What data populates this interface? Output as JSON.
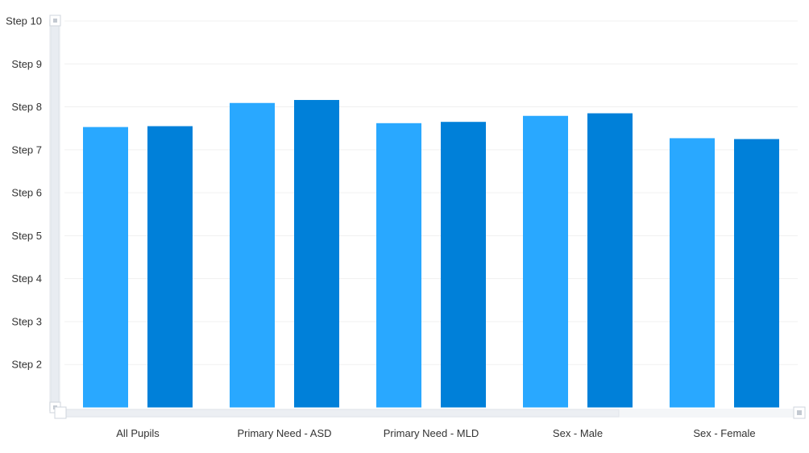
{
  "chart_data": {
    "type": "bar",
    "categories": [
      "All Pupils",
      "Primary Need - ASD",
      "Primary Need - MLD",
      "Sex - Male",
      "Sex - Female"
    ],
    "series": [
      {
        "values": [
          7.53,
          8.09,
          7.62,
          7.79,
          7.27
        ],
        "color": "#29a8ff"
      },
      {
        "values": [
          7.55,
          8.16,
          7.65,
          7.85,
          7.25
        ],
        "color": "#0080d9"
      }
    ],
    "y_ticks": [
      {
        "value": 2,
        "label": "Step 2"
      },
      {
        "value": 3,
        "label": "Step 3"
      },
      {
        "value": 4,
        "label": "Step 4"
      },
      {
        "value": 5,
        "label": "Step 5"
      },
      {
        "value": 6,
        "label": "Step 6"
      },
      {
        "value": 7,
        "label": "Step 7"
      },
      {
        "value": 8,
        "label": "Step 8"
      },
      {
        "value": 9,
        "label": "Step 9"
      },
      {
        "value": 10,
        "label": "Step 10"
      }
    ],
    "ylim": [
      1,
      10
    ],
    "grid": true,
    "legend": "none"
  }
}
